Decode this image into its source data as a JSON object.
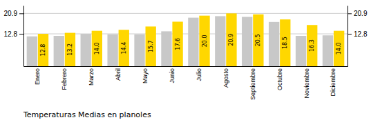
{
  "chart_data": {
    "type": "bar",
    "title": "Temperaturas Medias en planoles",
    "categories": [
      "Enero",
      "Febrero",
      "Marzo",
      "Abril",
      "Mayo",
      "Junio",
      "Julio",
      "Agosto",
      "Septiembre",
      "Octubre",
      "Noviembre",
      "Diciembre"
    ],
    "series": [
      {
        "color": "#C8C8C8",
        "values": [
          11.8,
          12.0,
          12.8,
          12.6,
          12.6,
          13.8,
          19.2,
          19.8,
          19.5,
          17.5,
          12.0,
          12.2
        ]
      },
      {
        "color": "#FFD700",
        "values": [
          12.8,
          13.2,
          14.0,
          14.4,
          15.7,
          17.6,
          20.0,
          20.9,
          20.5,
          18.5,
          16.3,
          14.0
        ],
        "data_labels": true,
        "value_labels": [
          "12.8",
          "13.2",
          "14.0",
          "14.4",
          "15.7",
          "17.6",
          "20.0",
          "20.9",
          "20.5",
          "18.5",
          "16.3",
          "14.0"
        ]
      }
    ],
    "ylim": [
      0,
      24.0
    ],
    "yticks": [
      12.8,
      20.9
    ],
    "y2lim": [
      0,
      24.0
    ],
    "y2ticks": [
      12.8,
      20.9
    ],
    "grid": true
  }
}
